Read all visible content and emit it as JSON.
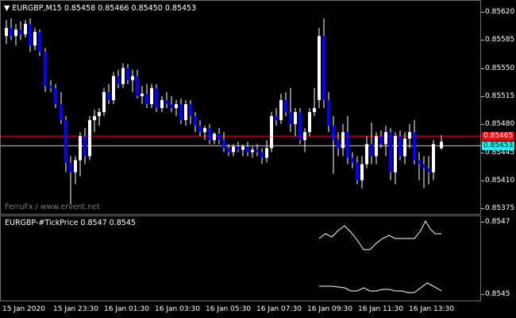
{
  "main_chart": {
    "symbol_label": "EURGBP,M15",
    "ohlc": [
      "0.85458",
      "0.85466",
      "0.85450",
      "0.85453"
    ],
    "watermark": "FerruFx / www.ervent.net",
    "price_ticks": [
      "0.85620",
      "0.85585",
      "0.85550",
      "0.85515",
      "0.85480",
      "0.85445",
      "0.85410",
      "0.85375"
    ],
    "red_line_label": "0.85465",
    "current_price_label": "0.85453",
    "colors": {
      "bull": "#ffffff",
      "bear": "#0000ff",
      "ask_line": "#ff0000",
      "bid_line": "#c8c8c8",
      "badge_current": "#00ffff"
    }
  },
  "indicator": {
    "label": "EURGBP-#TickPrice 0.8547 0.8545",
    "ticks": [
      "0.8547",
      "0.8545"
    ]
  },
  "time_axis": [
    "15 Jan 2020",
    "15 Jan 23:30",
    "16 Jan 01:30",
    "16 Jan 03:30",
    "16 Jan 05:30",
    "16 Jan 07:30",
    "16 Jan 09:30",
    "16 Jan 11:30",
    "16 Jan 13:30"
  ]
}
